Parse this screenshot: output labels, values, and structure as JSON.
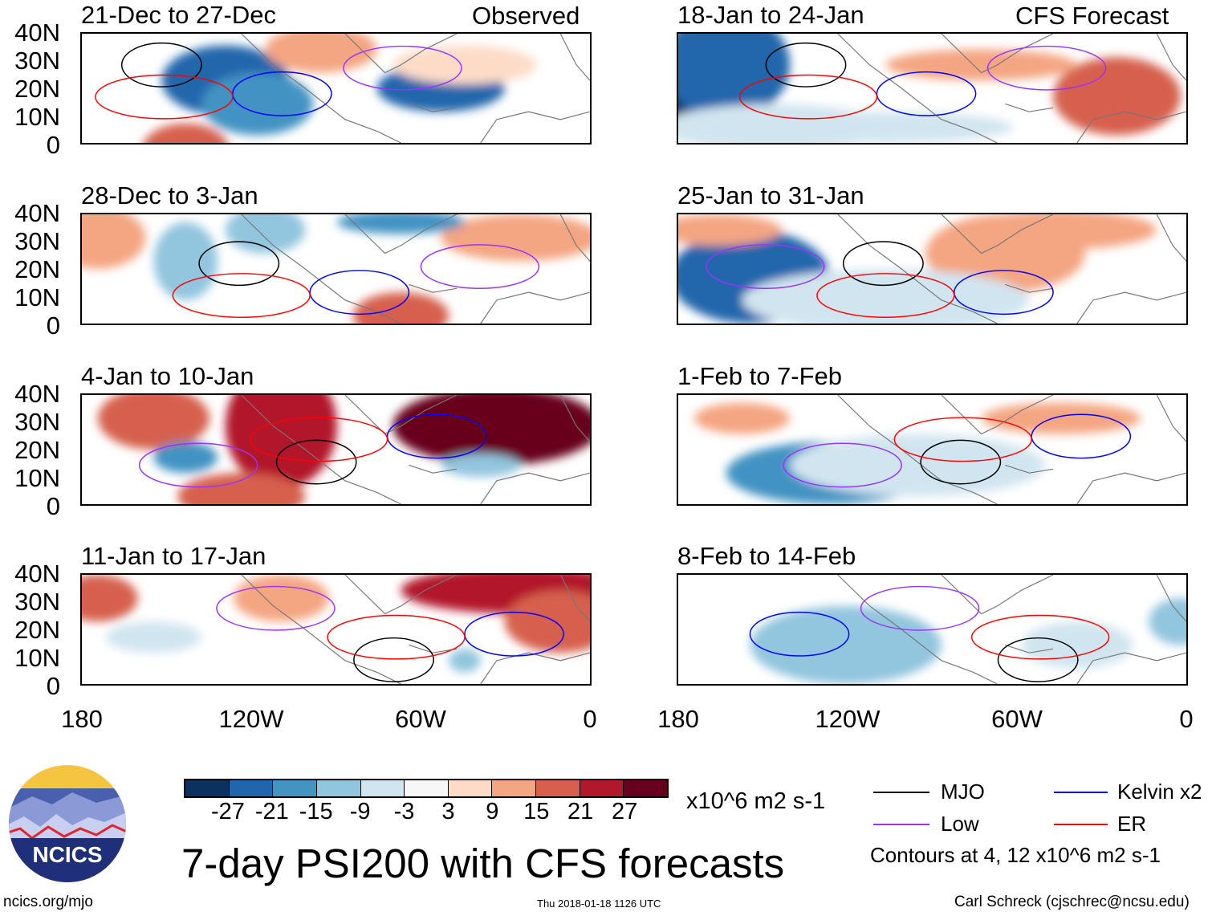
{
  "title": "7-day PSI200 with CFS forecasts",
  "left_header": "Observed",
  "right_header": "CFS Forecast",
  "panels_left": [
    "21-Dec to 27-Dec",
    "28-Dec to 3-Jan",
    "4-Jan to 10-Jan",
    "11-Jan to 17-Jan"
  ],
  "panels_right": [
    "18-Jan to 24-Jan",
    "25-Jan to 31-Jan",
    "1-Feb to 7-Feb",
    "8-Feb to 14-Feb"
  ],
  "lat_labels": [
    "40N",
    "30N",
    "20N",
    "10N",
    "0"
  ],
  "lon_labels": [
    "180",
    "120W",
    "60W",
    "0"
  ],
  "colorbar": {
    "colors": [
      "#0a3160",
      "#2166ac",
      "#4393c3",
      "#92c5de",
      "#d1e5f0",
      "#f7f7f7",
      "#fddbc7",
      "#f4a582",
      "#d6604d",
      "#b2182b",
      "#67001f"
    ],
    "labels": [
      "-27",
      "-21",
      "-15",
      "-9",
      "-3",
      "3",
      "9",
      "15",
      "21",
      "27"
    ],
    "units": "x10^6 m2 s-1"
  },
  "legend": {
    "items": [
      {
        "label": "MJO",
        "color": "#000000"
      },
      {
        "label": "Kelvin x2",
        "color": "#0000ff"
      },
      {
        "label": "Low",
        "color": "#9933ff"
      },
      {
        "label": "ER",
        "color": "#ff0000"
      }
    ],
    "note": "Contours at 4, 12 x10^6 m2 s-1"
  },
  "logo_text": "NCICS",
  "footer": {
    "url": "ncics.org/mjo",
    "timestamp": "Thu 2018-01-18 1126 UTC",
    "credit": "Carl Schreck (cjschrec@ncsu.edu)"
  }
}
